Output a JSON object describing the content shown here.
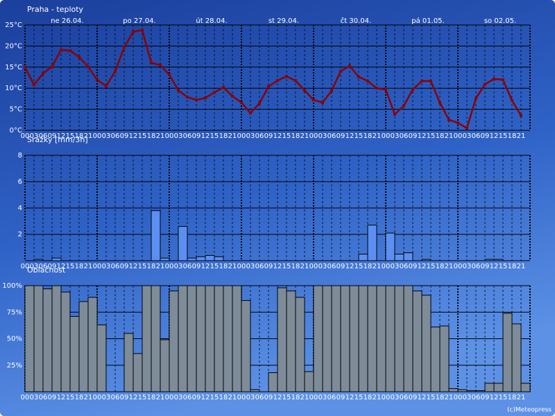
{
  "chart_data": [
    {
      "type": "line",
      "title": "Praha - teploty",
      "color": "#8b0000",
      "day_labels": [
        "ne 26.04.",
        "po 27.04.",
        "út 28.04.",
        "st 29.04.",
        "čt 30.04.",
        "pá 01.05.",
        "so 02.05."
      ],
      "categories": [
        "00",
        "03",
        "06",
        "09",
        "12",
        "15",
        "18",
        "21",
        "00",
        "03",
        "06",
        "09",
        "12",
        "15",
        "18",
        "21",
        "00",
        "03",
        "06",
        "09",
        "12",
        "15",
        "18",
        "21",
        "00",
        "03",
        "06",
        "09",
        "12",
        "15",
        "18",
        "21",
        "00",
        "03",
        "06",
        "09",
        "12",
        "15",
        "18",
        "21",
        "00",
        "03",
        "06",
        "09",
        "12",
        "15",
        "18",
        "21",
        "00",
        "03",
        "06",
        "09",
        "12",
        "15",
        "18",
        "21"
      ],
      "values": [
        15,
        10.8,
        13.5,
        15.1,
        19.1,
        18.9,
        17.4,
        15.1,
        12,
        10.5,
        14,
        19.7,
        23.4,
        23.8,
        16,
        15.5,
        13.2,
        9.5,
        7.9,
        7.2,
        7.7,
        9,
        10.2,
        8.1,
        6.6,
        4.1,
        6.4,
        10.4,
        11.8,
        12.8,
        11.8,
        9.5,
        7.2,
        6.6,
        9.4,
        14,
        15.3,
        12.7,
        11.7,
        10,
        9.7,
        3.8,
        5.8,
        9.7,
        11.7,
        11.7,
        6.6,
        2.5,
        1.8,
        0.5,
        7.6,
        10.9,
        12.2,
        12,
        7.1,
        3.5
      ],
      "ylim": [
        0,
        25
      ],
      "yticks": [
        {
          "value": 0,
          "label": "0°C"
        },
        {
          "value": 5,
          "label": "5°C"
        },
        {
          "value": 10,
          "label": "10°C"
        },
        {
          "value": 15,
          "label": "15°C"
        },
        {
          "value": 20,
          "label": "20°C"
        },
        {
          "value": 25,
          "label": "25°C"
        }
      ]
    },
    {
      "type": "bar",
      "title": "Srážky [mm/3h]",
      "color": "#5b8ff2",
      "categories": [
        "00",
        "03",
        "06",
        "09",
        "12",
        "15",
        "18",
        "21",
        "00",
        "03",
        "06",
        "09",
        "12",
        "15",
        "18",
        "21",
        "00",
        "03",
        "06",
        "09",
        "12",
        "15",
        "18",
        "21",
        "00",
        "03",
        "06",
        "09",
        "12",
        "15",
        "18",
        "21",
        "00",
        "03",
        "06",
        "09",
        "12",
        "15",
        "18",
        "21",
        "00",
        "03",
        "06",
        "09",
        "12",
        "15",
        "18",
        "21",
        "00",
        "03",
        "06",
        "09",
        "12",
        "15",
        "18",
        "21"
      ],
      "values": [
        0,
        0.1,
        0,
        0.2,
        0,
        0,
        0,
        0,
        0,
        0,
        0,
        0,
        0,
        0,
        3.8,
        0.2,
        0,
        2.6,
        0.2,
        0.3,
        0.4,
        0.3,
        0,
        0,
        0,
        0,
        0,
        0,
        0,
        0,
        0,
        0,
        0,
        0,
        0,
        0,
        0,
        0.5,
        2.7,
        0,
        2.1,
        0.5,
        0.6,
        0,
        0.1,
        0,
        0,
        0,
        0,
        0,
        0,
        0.1,
        0.1,
        0,
        0,
        0
      ],
      "ylim": [
        0,
        8
      ],
      "yticks": [
        2,
        4,
        6,
        8
      ]
    },
    {
      "type": "bar",
      "title": "Oblačnost",
      "color": "#7e8b98",
      "categories": [
        "00",
        "03",
        "06",
        "09",
        "12",
        "15",
        "18",
        "21",
        "00",
        "03",
        "06",
        "09",
        "12",
        "15",
        "18",
        "21",
        "00",
        "03",
        "06",
        "09",
        "12",
        "15",
        "18",
        "21",
        "00",
        "03",
        "06",
        "09",
        "12",
        "15",
        "18",
        "21",
        "00",
        "03",
        "06",
        "09",
        "12",
        "15",
        "18",
        "21",
        "00",
        "03",
        "06",
        "09",
        "12",
        "15",
        "18",
        "21",
        "00",
        "03",
        "06",
        "09",
        "12",
        "15",
        "18",
        "21"
      ],
      "values": [
        100,
        100,
        97,
        100,
        94,
        71,
        85,
        89,
        63,
        0,
        0,
        55,
        36,
        100,
        100,
        49,
        95,
        100,
        100,
        100,
        100,
        100,
        100,
        100,
        86,
        2,
        0,
        18,
        98,
        95,
        89,
        19,
        100,
        100,
        100,
        100,
        100,
        100,
        100,
        100,
        100,
        100,
        100,
        95,
        91,
        61,
        62,
        3,
        2,
        1,
        1,
        8,
        8,
        74,
        64,
        8
      ],
      "ylim": [
        0,
        100
      ],
      "yticks": [
        {
          "value": 25,
          "label": "25%"
        },
        {
          "value": 50,
          "label": "50%"
        },
        {
          "value": 75,
          "label": "75%"
        },
        {
          "value": 100,
          "label": "100%"
        }
      ]
    }
  ],
  "copyright": "(c)Meteopress"
}
